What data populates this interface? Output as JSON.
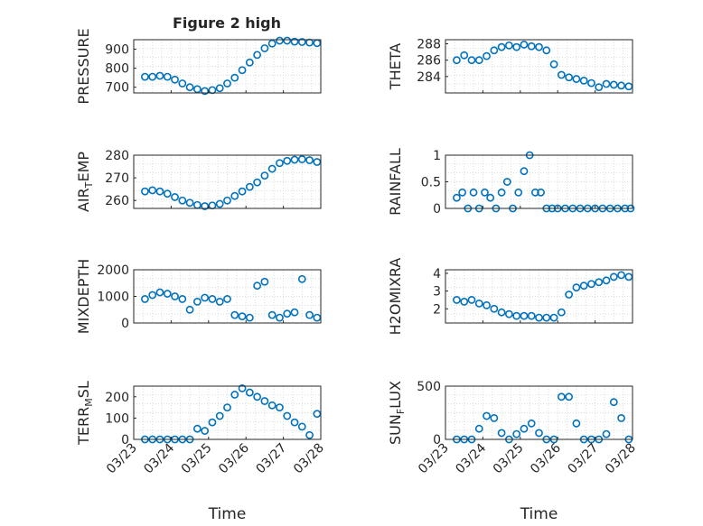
{
  "figure": {
    "title": "Figure 2 high",
    "marker_color": "#0072bd",
    "axis_color": "#262626",
    "grid_color": "#dcdcdc"
  },
  "chart_data": [
    {
      "type": "scatter",
      "ylabel": "PRESSURE",
      "xlim": [
        0,
        5
      ],
      "ylim": [
        670,
        950
      ],
      "yticks": [
        700,
        800,
        900
      ],
      "ytick_labels": [
        "700",
        "800",
        "900"
      ],
      "x": [
        0.3,
        0.5,
        0.7,
        0.9,
        1.1,
        1.3,
        1.5,
        1.7,
        1.9,
        2.1,
        2.3,
        2.5,
        2.7,
        2.9,
        3.1,
        3.3,
        3.5,
        3.7,
        3.9,
        4.1,
        4.3,
        4.5,
        4.7,
        4.9
      ],
      "y": [
        755,
        755,
        760,
        755,
        740,
        720,
        700,
        690,
        680,
        685,
        695,
        720,
        750,
        790,
        830,
        870,
        905,
        930,
        945,
        945,
        940,
        938,
        935,
        932
      ]
    },
    {
      "type": "scatter",
      "ylabel": "THETA",
      "xlim": [
        0,
        5
      ],
      "ylim": [
        282,
        288.5
      ],
      "yticks": [
        284,
        286,
        288
      ],
      "ytick_labels": [
        "284",
        "286",
        "288"
      ],
      "x": [
        0.3,
        0.5,
        0.7,
        0.9,
        1.1,
        1.3,
        1.5,
        1.7,
        1.9,
        2.1,
        2.3,
        2.5,
        2.7,
        2.9,
        3.1,
        3.3,
        3.5,
        3.7,
        3.9,
        4.1,
        4.3,
        4.5,
        4.7,
        4.9
      ],
      "y": [
        286,
        286.6,
        286,
        286,
        286.5,
        287.2,
        287.6,
        287.8,
        287.6,
        287.9,
        287.7,
        287.6,
        287.2,
        285.5,
        284.2,
        283.9,
        283.7,
        283.5,
        283.2,
        282.7,
        283.1,
        283,
        282.9,
        282.8
      ]
    },
    {
      "type": "scatter",
      "ylabel": "AIR_TEMP",
      "xlim": [
        0,
        5
      ],
      "ylim": [
        256.5,
        280
      ],
      "yticks": [
        260,
        270,
        280
      ],
      "ytick_labels": [
        "260",
        "270",
        "280"
      ],
      "x": [
        0.3,
        0.5,
        0.7,
        0.9,
        1.1,
        1.3,
        1.5,
        1.7,
        1.9,
        2.1,
        2.3,
        2.5,
        2.7,
        2.9,
        3.1,
        3.3,
        3.5,
        3.7,
        3.9,
        4.1,
        4.3,
        4.5,
        4.7,
        4.9
      ],
      "y": [
        264,
        264.5,
        264,
        263,
        261.5,
        260,
        259,
        258,
        257.5,
        257.8,
        258.5,
        260,
        262,
        264,
        266,
        268,
        271,
        274,
        276.5,
        277.5,
        278,
        278.2,
        277.8,
        277
      ]
    },
    {
      "type": "scatter",
      "ylabel": "RAINFALL",
      "xlim": [
        0,
        5
      ],
      "ylim": [
        0,
        1
      ],
      "yticks": [
        0,
        0.5,
        1
      ],
      "ytick_labels": [
        "0",
        "0.5",
        "1"
      ],
      "x": [
        0.3,
        0.45,
        0.6,
        0.75,
        0.9,
        1.05,
        1.2,
        1.35,
        1.5,
        1.65,
        1.8,
        1.95,
        2.1,
        2.25,
        2.4,
        2.55,
        2.7,
        2.85,
        3.0,
        3.2,
        3.4,
        3.6,
        3.8,
        4.0,
        4.2,
        4.4,
        4.6,
        4.8,
        4.95
      ],
      "y": [
        0.2,
        0.3,
        0,
        0.3,
        0,
        0.3,
        0.2,
        0,
        0.3,
        0.5,
        0,
        0.3,
        0.7,
        1,
        0.3,
        0.3,
        0,
        0,
        0,
        0,
        0,
        0,
        0,
        0,
        0,
        0,
        0,
        0,
        0
      ]
    },
    {
      "type": "scatter",
      "ylabel": "MIXDEPTH",
      "xlim": [
        0,
        5
      ],
      "ylim": [
        0,
        2000
      ],
      "yticks": [
        0,
        1000,
        2000
      ],
      "ytick_labels": [
        "0",
        "1000",
        "2000"
      ],
      "x": [
        0.3,
        0.5,
        0.7,
        0.9,
        1.1,
        1.3,
        1.5,
        1.7,
        1.9,
        2.1,
        2.3,
        2.5,
        2.7,
        2.9,
        3.1,
        3.3,
        3.5,
        3.7,
        3.9,
        4.1,
        4.3,
        4.5,
        4.7,
        4.9
      ],
      "y": [
        900,
        1050,
        1150,
        1100,
        1000,
        900,
        500,
        800,
        950,
        900,
        800,
        900,
        300,
        250,
        200,
        1400,
        1550,
        300,
        200,
        350,
        400,
        1650,
        300,
        200
      ]
    },
    {
      "type": "scatter",
      "ylabel": "H2OMIXRA",
      "xlim": [
        0,
        5
      ],
      "ylim": [
        1.2,
        4.2
      ],
      "yticks": [
        2,
        3,
        4
      ],
      "ytick_labels": [
        "2",
        "3",
        "4"
      ],
      "x": [
        0.3,
        0.5,
        0.7,
        0.9,
        1.1,
        1.3,
        1.5,
        1.7,
        1.9,
        2.1,
        2.3,
        2.5,
        2.7,
        2.9,
        3.1,
        3.3,
        3.5,
        3.7,
        3.9,
        4.1,
        4.3,
        4.5,
        4.7,
        4.9
      ],
      "y": [
        2.5,
        2.4,
        2.5,
        2.3,
        2.2,
        2,
        1.8,
        1.7,
        1.6,
        1.6,
        1.6,
        1.5,
        1.5,
        1.5,
        1.8,
        2.8,
        3.2,
        3.3,
        3.4,
        3.5,
        3.6,
        3.8,
        3.9,
        3.8
      ]
    },
    {
      "type": "scatter",
      "ylabel": "TERR_MSL",
      "xlim": [
        0,
        5
      ],
      "ylim": [
        0,
        250
      ],
      "yticks": [
        0,
        100,
        200
      ],
      "ytick_labels": [
        "0",
        "100",
        "200"
      ],
      "x": [
        0.3,
        0.5,
        0.7,
        0.9,
        1.1,
        1.3,
        1.5,
        1.7,
        1.9,
        2.1,
        2.3,
        2.5,
        2.7,
        2.9,
        3.1,
        3.3,
        3.5,
        3.7,
        3.9,
        4.1,
        4.3,
        4.5,
        4.7,
        4.9
      ],
      "y": [
        0,
        0,
        0,
        0,
        0,
        0,
        0,
        50,
        40,
        80,
        110,
        150,
        210,
        240,
        220,
        200,
        180,
        160,
        150,
        110,
        80,
        60,
        20,
        120
      ],
      "xticks": [
        0,
        1,
        2,
        3,
        4,
        5
      ],
      "xtick_labels": [
        "03/23",
        "03/24",
        "03/25",
        "03/26",
        "03/27",
        "03/28"
      ],
      "xlabel": "Time"
    },
    {
      "type": "scatter",
      "ylabel": "SUN_FLUX",
      "xlim": [
        0,
        5
      ],
      "ylim": [
        0,
        500
      ],
      "yticks": [
        0,
        500
      ],
      "ytick_labels": [
        "0",
        "500"
      ],
      "x": [
        0.3,
        0.5,
        0.7,
        0.9,
        1.1,
        1.3,
        1.5,
        1.7,
        1.9,
        2.1,
        2.3,
        2.5,
        2.7,
        2.9,
        3.1,
        3.3,
        3.5,
        3.7,
        3.9,
        4.1,
        4.3,
        4.5,
        4.7,
        4.9
      ],
      "y": [
        0,
        0,
        0,
        100,
        220,
        200,
        60,
        0,
        50,
        100,
        150,
        60,
        0,
        0,
        400,
        400,
        150,
        0,
        0,
        0,
        50,
        350,
        200,
        0
      ],
      "xticks": [
        0,
        1,
        2,
        3,
        4,
        5
      ],
      "xtick_labels": [
        "03/23",
        "03/24",
        "03/25",
        "03/26",
        "03/27",
        "03/28"
      ],
      "xlabel": "Time"
    }
  ]
}
